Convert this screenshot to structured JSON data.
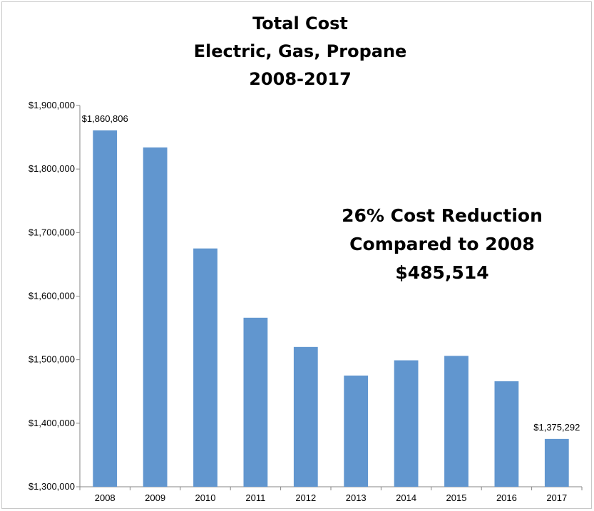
{
  "chart_data": {
    "type": "bar",
    "title_lines": [
      "Total Cost",
      "Electric, Gas, Propane",
      "2008-2017"
    ],
    "categories": [
      "2008",
      "2009",
      "2010",
      "2011",
      "2012",
      "2013",
      "2014",
      "2015",
      "2016",
      "2017"
    ],
    "values": [
      1860806,
      1834000,
      1675000,
      1566000,
      1520000,
      1475000,
      1499000,
      1506000,
      1466000,
      1375292
    ],
    "data_labels": [
      {
        "index": 0,
        "text": "$1,860,806"
      },
      {
        "index": 9,
        "text": "$1,375,292"
      }
    ],
    "yticks": [
      1300000,
      1400000,
      1500000,
      1600000,
      1700000,
      1800000,
      1900000
    ],
    "ytick_labels": [
      "$1,300,000",
      "$1,400,000",
      "$1,500,000",
      "$1,600,000",
      "$1,700,000",
      "$1,800,000",
      "$1,900,000"
    ],
    "ylim": [
      1300000,
      1900000
    ],
    "annotation_lines": [
      "26% Cost Reduction",
      "Compared to 2008",
      "$485,514"
    ],
    "bar_color": "#6196cf",
    "grid": false,
    "legend": "none"
  }
}
